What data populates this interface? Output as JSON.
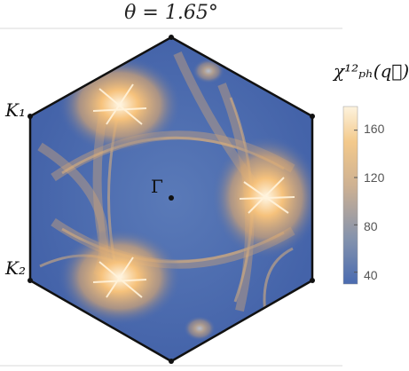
{
  "title": "θ = 1.65°",
  "points": {
    "k1": "K₁",
    "k2": "K₂",
    "gamma": "Γ"
  },
  "colorbar": {
    "title": "χ¹²ₚₕ(q⃗)",
    "ticks": [
      "160",
      "120",
      "80",
      "40"
    ],
    "range": [
      30,
      180
    ],
    "tick_values": [
      160,
      120,
      80,
      40
    ],
    "colors": [
      "#4a6bb0",
      "#7f90ad",
      "#c4b19a",
      "#f1bf7f",
      "#fdf1d8"
    ]
  },
  "colors": {
    "background": "#4a6bb0",
    "hot": "#f6c27c",
    "hottest": "#fff7e6",
    "edge": "#111111"
  }
}
